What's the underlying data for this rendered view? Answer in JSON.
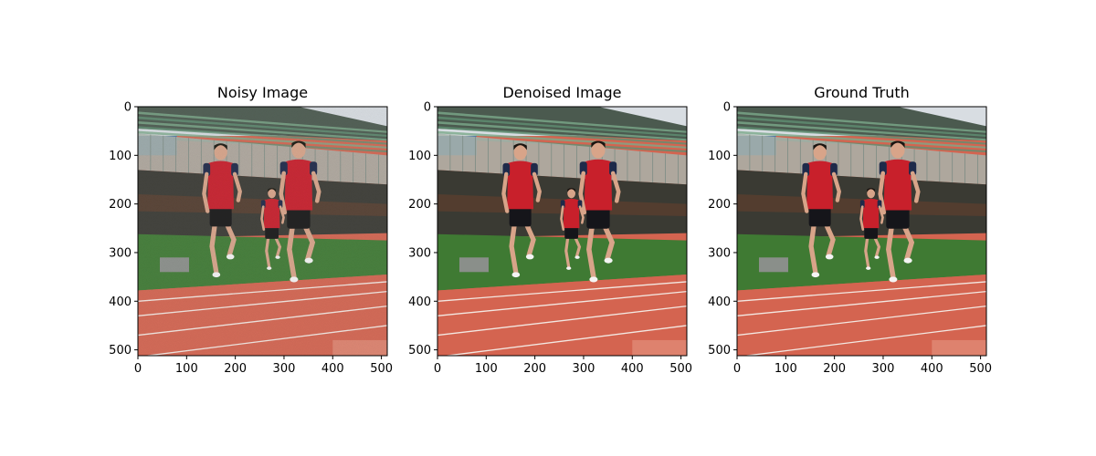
{
  "figure": {
    "background": "#ffffff"
  },
  "chart_data": [
    {
      "type": "image",
      "title": "Noisy Image",
      "xlim": [
        0,
        512
      ],
      "ylim": [
        512,
        0
      ],
      "x_ticks": [
        0,
        100,
        200,
        300,
        400,
        500
      ],
      "y_ticks": [
        0,
        100,
        200,
        300,
        400,
        500
      ],
      "noise": true
    },
    {
      "type": "image",
      "title": "Denoised Image",
      "xlim": [
        0,
        512
      ],
      "ylim": [
        512,
        0
      ],
      "x_ticks": [
        0,
        100,
        200,
        300,
        400,
        500
      ],
      "y_ticks": [
        0,
        100,
        200,
        300,
        400,
        500
      ],
      "noise": false
    },
    {
      "type": "image",
      "title": "Ground Truth",
      "xlim": [
        0,
        512
      ],
      "ylim": [
        512,
        0
      ],
      "x_ticks": [
        0,
        100,
        200,
        300,
        400,
        500
      ],
      "y_ticks": [
        0,
        100,
        200,
        300,
        400,
        500
      ],
      "noise": false
    }
  ],
  "scene_colors": {
    "sky": "#d8dde2",
    "stands_dark": "#4b5a4f",
    "stands_green": "#5f8f72",
    "stands_blue": "#4f76a6",
    "fence": "#a7b3aa",
    "building": "#3a3a33",
    "hedge": "#3f7a33",
    "track": "#d46450",
    "lane_line": "#f3e8e2",
    "shirt": "#c8202b",
    "sleeve": "#1e2a4a",
    "shorts": "#15151a",
    "skin": "#d8a489",
    "hair": "#1a1410"
  }
}
